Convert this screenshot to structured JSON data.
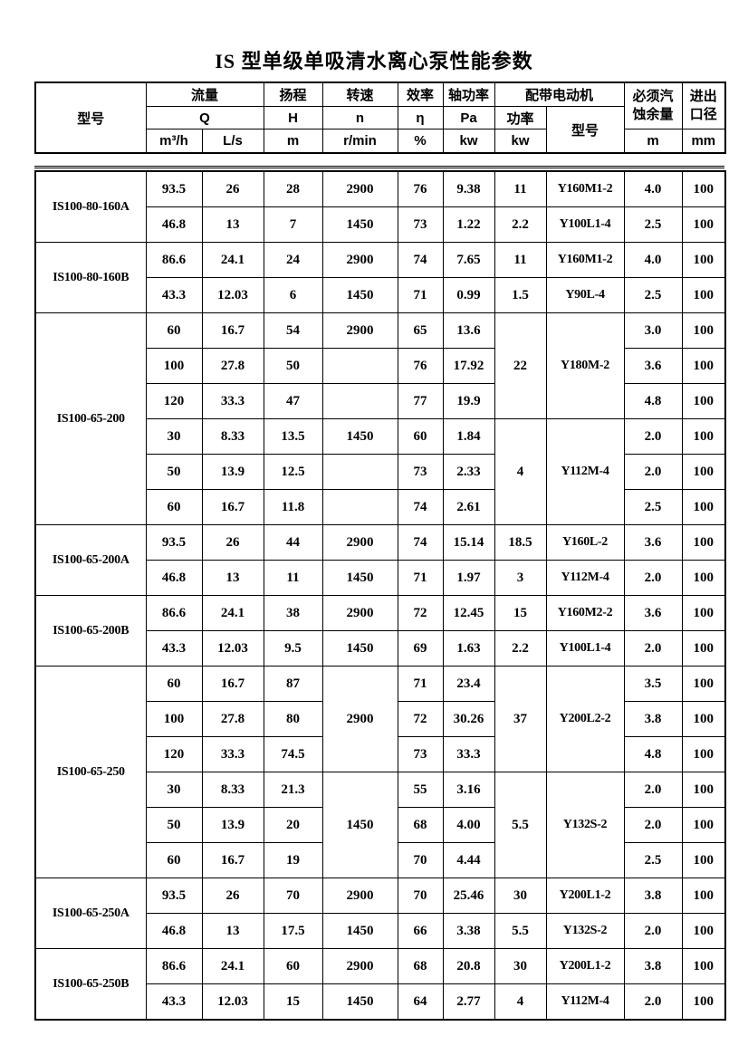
{
  "page_title": "IS 型单级单吸清水离心泵性能参数",
  "table_header": {
    "model": "型号",
    "flow": "流量",
    "flow_symbol": "Q",
    "flow_unit_m3h": "m³/h",
    "flow_unit_ls": "L/s",
    "head": "扬程",
    "head_symbol": "H",
    "head_unit": "m",
    "speed": "转速",
    "speed_symbol": "n",
    "speed_unit": "r/min",
    "efficiency": "效率",
    "efficiency_symbol": "η",
    "efficiency_unit": "%",
    "shaft_power": "轴功率",
    "shaft_power_symbol": "Pa",
    "shaft_power_unit": "kw",
    "motor_group": "配带电动机",
    "motor_power": "功率",
    "motor_power_unit": "kw",
    "motor_model": "型号",
    "npsh_line1": "必须汽",
    "npsh_line2": "蚀余量",
    "npsh_unit": "m",
    "diameter_line1": "进出",
    "diameter_line2": "口径",
    "diameter_unit": "mm"
  },
  "groups": [
    {
      "model": "IS100-80-160A",
      "rows": [
        [
          "93.5",
          "26",
          "28",
          "2900",
          "76",
          "9.38",
          "11",
          "Y160M1-2",
          "4.0",
          "100"
        ],
        [
          "46.8",
          "13",
          "7",
          "1450",
          "73",
          "1.22",
          "2.2",
          "Y100L1-4",
          "2.5",
          "100"
        ]
      ]
    },
    {
      "model": "IS100-80-160B",
      "rows": [
        [
          "86.6",
          "24.1",
          "24",
          "2900",
          "74",
          "7.65",
          "11",
          "Y160M1-2",
          "4.0",
          "100"
        ],
        [
          "43.3",
          "12.03",
          "6",
          "1450",
          "71",
          "0.99",
          "1.5",
          "Y90L-4",
          "2.5",
          "100"
        ]
      ]
    },
    {
      "model": "IS100-65-200",
      "rows": [
        [
          "60",
          "16.7",
          "54",
          "2900",
          "65",
          "13.6",
          {
            "v": "22",
            "rs": 3
          },
          {
            "v": "Y180M-2",
            "rs": 3
          },
          "3.0",
          "100"
        ],
        [
          "100",
          "27.8",
          "50",
          "",
          "76",
          "17.92",
          null,
          null,
          "3.6",
          "100"
        ],
        [
          "120",
          "33.3",
          "47",
          "",
          "77",
          "19.9",
          null,
          null,
          "4.8",
          "100"
        ],
        [
          "30",
          "8.33",
          "13.5",
          "1450",
          "60",
          "1.84",
          {
            "v": "4",
            "rs": 3
          },
          {
            "v": "Y112M-4",
            "rs": 3
          },
          "2.0",
          "100"
        ],
        [
          "50",
          "13.9",
          "12.5",
          "",
          "73",
          "2.33",
          null,
          null,
          "2.0",
          "100"
        ],
        [
          "60",
          "16.7",
          "11.8",
          "",
          "74",
          "2.61",
          null,
          null,
          "2.5",
          "100"
        ]
      ]
    },
    {
      "model": "IS100-65-200A",
      "rows": [
        [
          "93.5",
          "26",
          "44",
          "2900",
          "74",
          "15.14",
          "18.5",
          "Y160L-2",
          "3.6",
          "100"
        ],
        [
          "46.8",
          "13",
          "11",
          "1450",
          "71",
          "1.97",
          "3",
          "Y112M-4",
          "2.0",
          "100"
        ]
      ]
    },
    {
      "model": "IS100-65-200B",
      "rows": [
        [
          "86.6",
          "24.1",
          "38",
          "2900",
          "72",
          "12.45",
          "15",
          "Y160M2-2",
          "3.6",
          "100"
        ],
        [
          "43.3",
          "12.03",
          "9.5",
          "1450",
          "69",
          "1.63",
          "2.2",
          "Y100L1-4",
          "2.0",
          "100"
        ]
      ]
    },
    {
      "model": "IS100-65-250",
      "rows": [
        [
          "60",
          "16.7",
          "87",
          {
            "v": "2900",
            "rs": 3
          },
          "71",
          "23.4",
          {
            "v": "37",
            "rs": 3
          },
          {
            "v": "Y200L2-2",
            "rs": 3
          },
          "3.5",
          "100"
        ],
        [
          "100",
          "27.8",
          "80",
          null,
          "72",
          "30.26",
          null,
          null,
          "3.8",
          "100"
        ],
        [
          "120",
          "33.3",
          "74.5",
          null,
          "73",
          "33.3",
          null,
          null,
          "4.8",
          "100"
        ],
        [
          "30",
          "8.33",
          "21.3",
          {
            "v": "1450",
            "rs": 3
          },
          "55",
          "3.16",
          {
            "v": "5.5",
            "rs": 3
          },
          {
            "v": "Y132S-2",
            "rs": 3
          },
          "2.0",
          "100"
        ],
        [
          "50",
          "13.9",
          "20",
          null,
          "68",
          "4.00",
          null,
          null,
          "2.0",
          "100"
        ],
        [
          "60",
          "16.7",
          "19",
          null,
          "70",
          "4.44",
          null,
          null,
          "2.5",
          "100"
        ]
      ]
    },
    {
      "model": "IS100-65-250A",
      "rows": [
        [
          "93.5",
          "26",
          "70",
          "2900",
          "70",
          "25.46",
          "30",
          "Y200L1-2",
          "3.8",
          "100"
        ],
        [
          "46.8",
          "13",
          "17.5",
          "1450",
          "66",
          "3.38",
          "5.5",
          "Y132S-2",
          "2.0",
          "100"
        ]
      ]
    },
    {
      "model": "IS100-65-250B",
      "rows": [
        [
          "86.6",
          "24.1",
          "60",
          "2900",
          "68",
          "20.8",
          "30",
          "Y200L1-2",
          "3.8",
          "100"
        ],
        [
          "43.3",
          "12.03",
          "15",
          "1450",
          "64",
          "2.77",
          "4",
          "Y112M-4",
          "2.0",
          "100"
        ]
      ]
    }
  ]
}
